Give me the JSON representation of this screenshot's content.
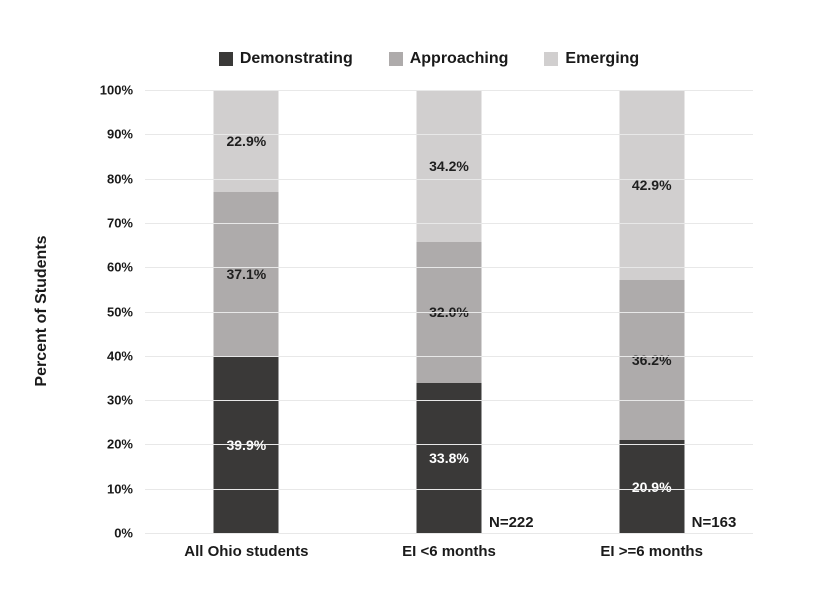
{
  "chart_data": {
    "type": "bar",
    "stacked": true,
    "orientation": "vertical",
    "title": "",
    "ylabel": "Percent of Students",
    "xlabel": "",
    "ylim": [
      0,
      100
    ],
    "grid": true,
    "legend_position": "top",
    "categories": [
      "All Ohio students",
      "EI <6 months",
      "EI >=6 months"
    ],
    "series": [
      {
        "name": "Demonstrating",
        "color": "#3a3938",
        "label_color": "#ffffff",
        "values": [
          39.9,
          33.8,
          20.9
        ]
      },
      {
        "name": "Approaching",
        "color": "#aeabab",
        "label_color": "#1f1f1f",
        "values": [
          37.1,
          32.0,
          36.2
        ]
      },
      {
        "name": "Emerging",
        "color": "#d1cfcf",
        "label_color": "#1f1f1f",
        "values": [
          22.9,
          34.2,
          42.9
        ]
      }
    ],
    "y_ticks": [
      "100%",
      "90%",
      "80%",
      "70%",
      "60%",
      "50%",
      "40%",
      "30%",
      "20%",
      "10%",
      "0%"
    ],
    "annotations": [
      {
        "category_index": 1,
        "text": "N=222"
      },
      {
        "category_index": 2,
        "text": "N=163"
      }
    ],
    "colors": {
      "background": "#ffffff",
      "gridline": "#e8e8e8",
      "text": "#1a1a1a"
    }
  }
}
